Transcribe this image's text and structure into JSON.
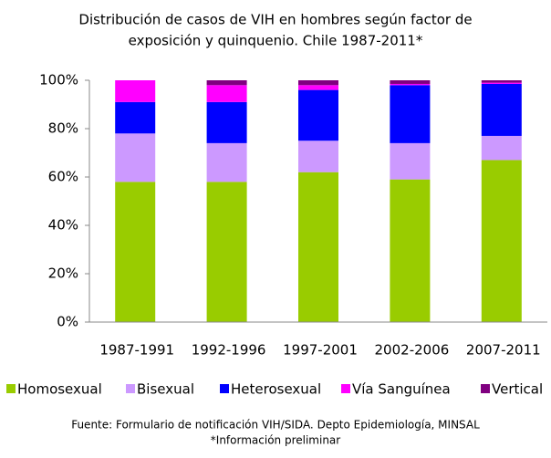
{
  "chart_data": {
    "type": "stacked_bar",
    "title": [
      "Distribución de casos de VIH en hombres según factor de",
      "exposición y quinquenio. Chile 1987-2011*"
    ],
    "categories": [
      "1987-1991",
      "1992-1996",
      "1997-2001",
      "2002-2006",
      "2007-2011"
    ],
    "series": [
      {
        "name": "Homosexual",
        "color": "#99cc00",
        "values": [
          58,
          58,
          62,
          59,
          67
        ]
      },
      {
        "name": "Bisexual",
        "color": "#cc99ff",
        "values": [
          20,
          16,
          13,
          15,
          10
        ]
      },
      {
        "name": "Heterosexual",
        "color": "#0000ff",
        "values": [
          13,
          17,
          21,
          24,
          21.5
        ]
      },
      {
        "name": "Vía Sanguínea",
        "color": "#ff00ff",
        "values": [
          9,
          7,
          2,
          0.5,
          0.5
        ]
      },
      {
        "name": "Vertical",
        "color": "#800080",
        "values": [
          0,
          2,
          2,
          1.5,
          1
        ]
      }
    ],
    "ylim": [
      0,
      100
    ],
    "yticks": [
      {
        "value": 0,
        "label": "0%"
      },
      {
        "value": 20,
        "label": "20%"
      },
      {
        "value": 40,
        "label": "40%"
      },
      {
        "value": 60,
        "label": "60%"
      },
      {
        "value": 80,
        "label": "80%"
      },
      {
        "value": 100,
        "label": "100%"
      }
    ],
    "grid": false,
    "legend": "bottom",
    "source": "Fuente: Formulario de notificación VIH/SIDA. Depto Epidemiología, MINSAL",
    "note": "*Información preliminar"
  }
}
